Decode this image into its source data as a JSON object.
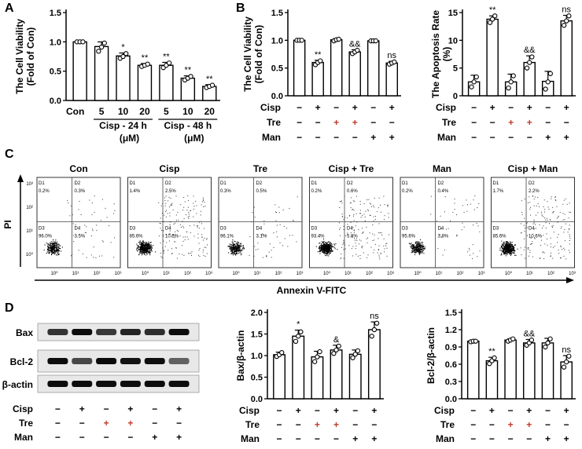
{
  "panel_labels": {
    "a": "A",
    "b": "B",
    "c": "C",
    "d": "D"
  },
  "chart_data": [
    {
      "id": "A",
      "type": "bar",
      "ylabel": [
        "The Cell Viability",
        "(Fold of Con)"
      ],
      "yticks": [
        "0.0",
        "0.5",
        "1.0",
        "1.5"
      ],
      "ylim": [
        0,
        1.5
      ],
      "categories": [
        "Con",
        "5",
        "10",
        "20",
        "5",
        "10",
        "20"
      ],
      "values": [
        1.0,
        0.92,
        0.76,
        0.6,
        0.6,
        0.38,
        0.24
      ],
      "errors": [
        0.01,
        0.08,
        0.05,
        0.03,
        0.05,
        0.04,
        0.03
      ],
      "points": [
        [
          1.0,
          1.0,
          1.0
        ],
        [
          0.84,
          0.91,
          0.98
        ],
        [
          0.72,
          0.75,
          0.8
        ],
        [
          0.58,
          0.6,
          0.62
        ],
        [
          0.56,
          0.6,
          0.64
        ],
        [
          0.35,
          0.38,
          0.41
        ],
        [
          0.22,
          0.24,
          0.26
        ]
      ],
      "sig": [
        "",
        "",
        "*",
        "**",
        "**",
        "**",
        "**"
      ],
      "groups": [
        {
          "label": "Cisp - 24 h",
          "unit": "(μM)"
        },
        {
          "label": "Cisp - 48 h",
          "unit": "(μM)"
        }
      ]
    },
    {
      "id": "B1",
      "type": "bar",
      "ylabel": [
        "The Cell Viability",
        "(Fold of Con)"
      ],
      "yticks": [
        "0.0",
        "0.5",
        "1.0",
        "1.5"
      ],
      "ylim": [
        0,
        1.5
      ],
      "values": [
        1.0,
        0.6,
        1.01,
        0.79,
        0.99,
        0.59
      ],
      "errors": [
        0.01,
        0.04,
        0.02,
        0.04,
        0.01,
        0.03
      ],
      "points": [
        [
          1.0,
          1.0,
          1.0
        ],
        [
          0.56,
          0.6,
          0.63
        ],
        [
          0.99,
          1.01,
          1.02
        ],
        [
          0.76,
          0.79,
          0.82
        ],
        [
          0.99,
          0.99,
          0.99
        ],
        [
          0.57,
          0.59,
          0.61
        ]
      ],
      "sig": [
        "",
        "**",
        "",
        "&&",
        "",
        "ns"
      ]
    },
    {
      "id": "B2",
      "type": "bar",
      "title": "The Apoptosis Rate",
      "ylabel": [
        "(%)"
      ],
      "yticks": [
        "0",
        "5",
        "10",
        "15"
      ],
      "ylim": [
        0,
        15
      ],
      "values": [
        2.5,
        13.8,
        2.5,
        6.0,
        2.6,
        13.5
      ],
      "errors": [
        1.2,
        0.6,
        1.4,
        1.2,
        1.8,
        1.0
      ],
      "points": [
        [
          1.6,
          2.5,
          3.4
        ],
        [
          13.2,
          13.8,
          14.4
        ],
        [
          1.4,
          2.5,
          3.6
        ],
        [
          5.0,
          6.0,
          7.0
        ],
        [
          1.2,
          2.5,
          4.0
        ],
        [
          12.7,
          13.5,
          14.4
        ]
      ],
      "sig": [
        "",
        "**",
        "",
        "&&",
        "",
        "ns"
      ]
    },
    {
      "id": "D1",
      "type": "bar",
      "ylabel": [
        "Bax/β-actin"
      ],
      "yticks": [
        "0.0",
        "0.5",
        "1.0",
        "1.5",
        "2.0"
      ],
      "ylim": [
        0,
        2.0
      ],
      "values": [
        1.02,
        1.45,
        0.97,
        1.13,
        1.03,
        1.6
      ],
      "errors": [
        0.06,
        0.14,
        0.13,
        0.11,
        0.1,
        0.18
      ],
      "points": [
        [
          0.98,
          1.02,
          1.07
        ],
        [
          1.33,
          1.45,
          1.55
        ],
        [
          0.86,
          0.97,
          1.09
        ],
        [
          1.05,
          1.13,
          1.22
        ],
        [
          0.95,
          1.03,
          1.11
        ],
        [
          1.45,
          1.6,
          1.75
        ]
      ],
      "sig": [
        "",
        "*",
        "",
        "&",
        "",
        "ns"
      ]
    },
    {
      "id": "D2",
      "type": "bar",
      "ylabel": [
        "Bcl-2/β-actin"
      ],
      "yticks": [
        "0.0",
        "0.3",
        "0.6",
        "0.9",
        "1.2",
        "1.5"
      ],
      "ylim": [
        0,
        1.5
      ],
      "values": [
        1.0,
        0.66,
        1.02,
        0.97,
        0.97,
        0.64
      ],
      "errors": [
        0.01,
        0.06,
        0.02,
        0.06,
        0.08,
        0.11
      ],
      "points": [
        [
          0.99,
          1.0,
          1.0
        ],
        [
          0.61,
          0.66,
          0.71
        ],
        [
          1.0,
          1.02,
          1.04
        ],
        [
          0.93,
          0.97,
          1.02
        ],
        [
          0.9,
          0.97,
          1.04
        ],
        [
          0.55,
          0.64,
          0.74
        ]
      ],
      "sig": [
        "",
        "**",
        "",
        "&&",
        "",
        "ns"
      ]
    }
  ],
  "treatment_labels": [
    "Cisp",
    "Tre",
    "Man"
  ],
  "treatment_matrix": [
    [
      "−",
      "+",
      "−",
      "+",
      "−",
      "+"
    ],
    [
      "−",
      "−",
      "+",
      "+",
      "−",
      "−"
    ],
    [
      "−",
      "−",
      "−",
      "−",
      "+",
      "+"
    ]
  ],
  "treatment_colors": {
    "Cisp": "#000000",
    "Tre": "#c0392b",
    "Man": "#000000"
  },
  "flow": {
    "ylabel": "PI",
    "xlabel": "Annexin V-FITC",
    "quadrant_names": [
      "D1",
      "D2",
      "D3",
      "D4"
    ],
    "axis_ticks": [
      "10⁰",
      "10¹",
      "10²",
      "10³"
    ],
    "panels": [
      {
        "title": "Con",
        "q": [
          "0.2%",
          "0.3%",
          "96.0%",
          "3.5%"
        ]
      },
      {
        "title": "Cisp",
        "q": [
          "1.4%",
          "2.5%",
          "85.6%",
          "10.5%"
        ]
      },
      {
        "title": "Tre",
        "q": [
          "0.3%",
          "0.5%",
          "96.1%",
          "3.1%"
        ]
      },
      {
        "title": "Cisp + Tre",
        "q": [
          "0.2%",
          "0.6%",
          "93.4%",
          "5.8%"
        ]
      },
      {
        "title": "Man",
        "q": [
          "0.2%",
          "0.4%",
          "95.6%",
          "3.8%"
        ]
      },
      {
        "title": "Cisp + Man",
        "q": [
          "1.7%",
          "2.2%",
          "85.6%",
          "10.6%"
        ]
      }
    ]
  },
  "western": {
    "labels": [
      "Bax",
      "Bcl-2",
      "β-actin"
    ],
    "intensities": [
      [
        0.8,
        0.95,
        0.78,
        0.86,
        0.82,
        0.95
      ],
      [
        0.95,
        0.72,
        0.96,
        0.92,
        0.94,
        0.62
      ],
      [
        0.95,
        0.95,
        0.95,
        0.95,
        0.95,
        0.95
      ]
    ]
  }
}
